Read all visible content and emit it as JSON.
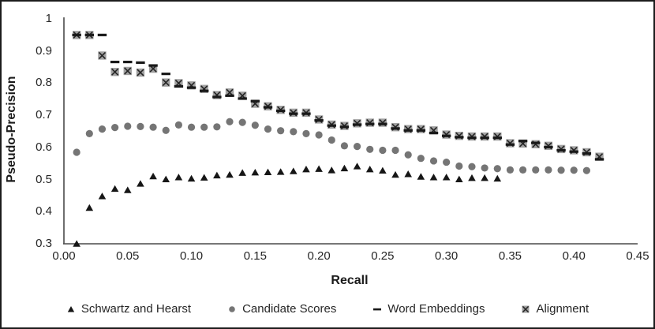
{
  "window": {
    "background": "#ffffff",
    "border_color": "#1c1c1c"
  },
  "chart_data": {
    "type": "scatter",
    "title": "",
    "xlabel": "Recall",
    "ylabel": "Pseudo-Precision",
    "xlim": [
      0,
      0.45
    ],
    "ylim": [
      0.3,
      1
    ],
    "grid": false,
    "legend_position": "bottom",
    "axis_color": "#4a4a4a",
    "text_color": "#262626",
    "x_ticks": {
      "labels": [
        "0.00",
        "0.05",
        "0.10",
        "0.15",
        "0.20",
        "0.25",
        "0.30",
        "0.35",
        "0.40",
        "0.45"
      ],
      "values": [
        0,
        0.05,
        0.1,
        0.15,
        0.2,
        0.25,
        0.3,
        0.35,
        0.4,
        0.45
      ]
    },
    "y_ticks": {
      "labels": [
        "1",
        "0.9",
        "0.8",
        "0.7",
        "0.6",
        "0.5",
        "0.4",
        "0.3"
      ],
      "values": [
        1,
        0.9,
        0.8,
        0.7,
        0.6,
        0.5,
        0.4,
        0.3
      ]
    },
    "series": [
      {
        "name": "Schwartz and Hearst",
        "marker": "triangle",
        "color": "#161616",
        "x": [
          0.01,
          0.02,
          0.03,
          0.04,
          0.05,
          0.06,
          0.07,
          0.08,
          0.09,
          0.1,
          0.11,
          0.12,
          0.13,
          0.14,
          0.15,
          0.16,
          0.17,
          0.18,
          0.19,
          0.2,
          0.21,
          0.22,
          0.23,
          0.24,
          0.25,
          0.26,
          0.27,
          0.28,
          0.29,
          0.3,
          0.31,
          0.32,
          0.33,
          0.34
        ],
        "y": [
          0.3,
          0.412,
          0.448,
          0.471,
          0.467,
          0.487,
          0.51,
          0.501,
          0.507,
          0.503,
          0.506,
          0.513,
          0.515,
          0.521,
          0.522,
          0.523,
          0.524,
          0.526,
          0.532,
          0.533,
          0.529,
          0.535,
          0.541,
          0.532,
          0.528,
          0.515,
          0.517,
          0.509,
          0.507,
          0.507,
          0.501,
          0.505,
          0.505,
          0.503
        ]
      },
      {
        "name": "Candidate Scores",
        "marker": "circle",
        "color": "#757575",
        "x": [
          0.01,
          0.02,
          0.03,
          0.04,
          0.05,
          0.06,
          0.07,
          0.08,
          0.09,
          0.1,
          0.11,
          0.12,
          0.13,
          0.14,
          0.15,
          0.16,
          0.17,
          0.18,
          0.19,
          0.2,
          0.21,
          0.22,
          0.23,
          0.24,
          0.25,
          0.26,
          0.27,
          0.28,
          0.29,
          0.3,
          0.31,
          0.32,
          0.33,
          0.34,
          0.35,
          0.36,
          0.37,
          0.38,
          0.39,
          0.4,
          0.41
        ],
        "y": [
          0.585,
          0.643,
          0.657,
          0.662,
          0.666,
          0.665,
          0.663,
          0.653,
          0.67,
          0.663,
          0.663,
          0.664,
          0.68,
          0.678,
          0.669,
          0.657,
          0.652,
          0.649,
          0.643,
          0.639,
          0.623,
          0.605,
          0.603,
          0.594,
          0.591,
          0.591,
          0.577,
          0.566,
          0.558,
          0.554,
          0.542,
          0.54,
          0.536,
          0.534,
          0.53,
          0.53,
          0.53,
          0.53,
          0.529,
          0.529,
          0.528
        ]
      },
      {
        "name": "Word Embeddings",
        "marker": "dash",
        "color": "#191919",
        "x": [
          0.01,
          0.02,
          0.03,
          0.04,
          0.05,
          0.06,
          0.07,
          0.08,
          0.09,
          0.1,
          0.11,
          0.12,
          0.13,
          0.14,
          0.15,
          0.16,
          0.17,
          0.18,
          0.19,
          0.2,
          0.21,
          0.22,
          0.23,
          0.24,
          0.25,
          0.26,
          0.27,
          0.28,
          0.29,
          0.3,
          0.31,
          0.32,
          0.33,
          0.34,
          0.35,
          0.36,
          0.37,
          0.38,
          0.39,
          0.4,
          0.41,
          0.42
        ],
        "y": [
          0.95,
          0.95,
          0.95,
          0.866,
          0.866,
          0.864,
          0.855,
          0.829,
          0.79,
          0.786,
          0.776,
          0.757,
          0.761,
          0.752,
          0.744,
          0.725,
          0.714,
          0.705,
          0.705,
          0.684,
          0.668,
          0.664,
          0.671,
          0.673,
          0.673,
          0.659,
          0.653,
          0.653,
          0.645,
          0.636,
          0.632,
          0.63,
          0.63,
          0.63,
          0.609,
          0.62,
          0.614,
          0.601,
          0.591,
          0.587,
          0.581,
          0.563
        ]
      },
      {
        "name": "Alignment",
        "marker": "x-square",
        "color": "#a1a1a1",
        "x_color": "#242424",
        "x": [
          0.01,
          0.02,
          0.03,
          0.04,
          0.05,
          0.06,
          0.07,
          0.08,
          0.09,
          0.1,
          0.11,
          0.12,
          0.13,
          0.14,
          0.15,
          0.16,
          0.17,
          0.18,
          0.19,
          0.2,
          0.21,
          0.22,
          0.23,
          0.24,
          0.25,
          0.26,
          0.27,
          0.28,
          0.29,
          0.3,
          0.31,
          0.32,
          0.33,
          0.34,
          0.35,
          0.36,
          0.37,
          0.38,
          0.39,
          0.4,
          0.41,
          0.42
        ],
        "y": [
          0.95,
          0.95,
          0.886,
          0.835,
          0.838,
          0.833,
          0.845,
          0.802,
          0.8,
          0.793,
          0.782,
          0.763,
          0.771,
          0.761,
          0.736,
          0.728,
          0.717,
          0.708,
          0.708,
          0.687,
          0.671,
          0.667,
          0.675,
          0.677,
          0.677,
          0.663,
          0.657,
          0.657,
          0.653,
          0.64,
          0.636,
          0.634,
          0.634,
          0.634,
          0.613,
          0.612,
          0.61,
          0.605,
          0.595,
          0.591,
          0.585,
          0.571
        ]
      }
    ]
  }
}
